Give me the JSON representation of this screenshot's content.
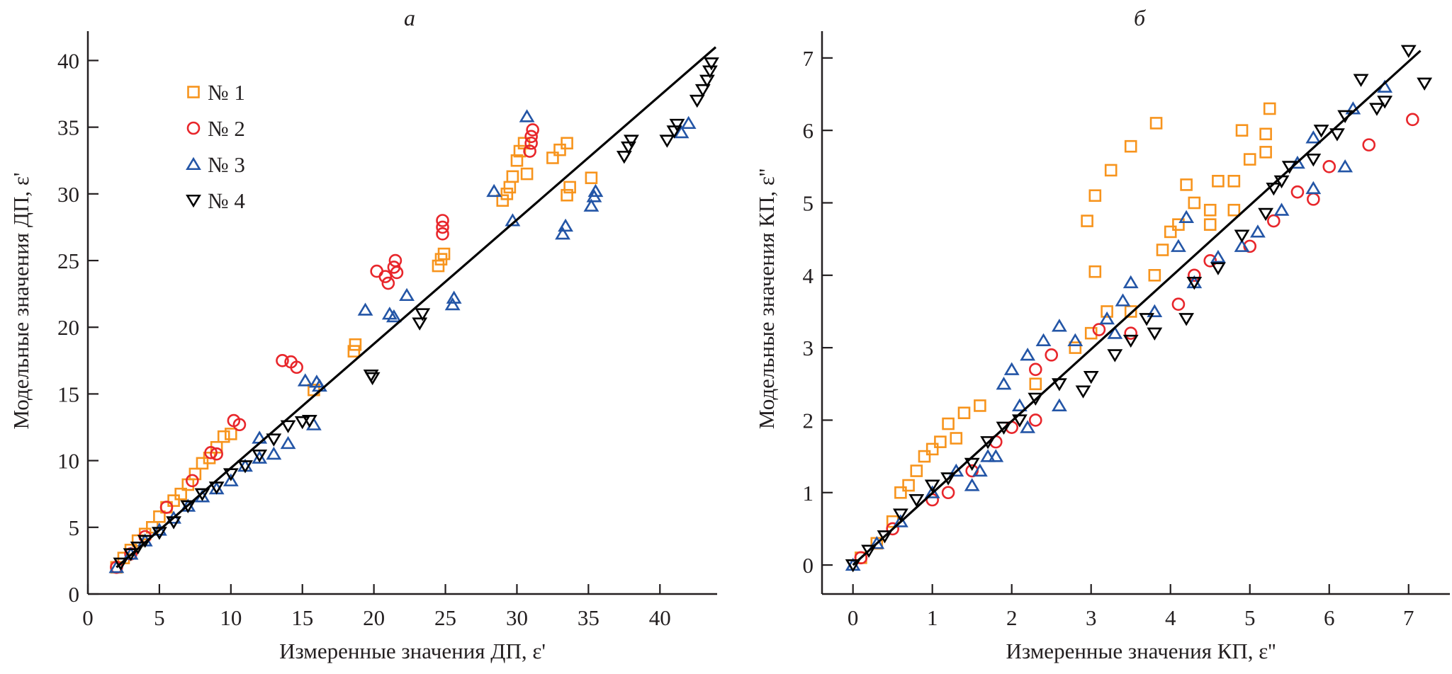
{
  "chart_data": [
    {
      "type": "scatter",
      "title": "а",
      "xlabel": "Измеренные значения ДП, ε'",
      "ylabel": "Модельные значения ДП, ε'",
      "xlim": [
        0,
        44
      ],
      "ylim": [
        0,
        42.2
      ],
      "xticks": [
        0,
        5,
        10,
        15,
        20,
        25,
        30,
        35,
        40
      ],
      "yticks": [
        0,
        5,
        10,
        15,
        20,
        25,
        30,
        35,
        40
      ],
      "grid": false,
      "legend_placement": "top-left",
      "fit_line": [
        [
          2,
          2
        ],
        [
          43.9,
          41
        ]
      ],
      "series": [
        {
          "name": "№ 1",
          "marker": "square",
          "color": "#f7941d",
          "points": [
            [
              2,
              2
            ],
            [
              2.5,
              2.7
            ],
            [
              3,
              3.3
            ],
            [
              3.5,
              4
            ],
            [
              4,
              4.5
            ],
            [
              4.5,
              5
            ],
            [
              5,
              5.8
            ],
            [
              5.5,
              6.5
            ],
            [
              6,
              7
            ],
            [
              6.5,
              7.5
            ],
            [
              7,
              8.2
            ],
            [
              7.5,
              9
            ],
            [
              8,
              9.8
            ],
            [
              8.5,
              10.2
            ],
            [
              9,
              11
            ],
            [
              9.5,
              11.8
            ],
            [
              10,
              12
            ],
            [
              15.8,
              15.3
            ],
            [
              18.6,
              18.2
            ],
            [
              18.7,
              18.7
            ],
            [
              24.5,
              24.6
            ],
            [
              24.7,
              25.1
            ],
            [
              24.9,
              25.5
            ],
            [
              29,
              29.5
            ],
            [
              29.3,
              30
            ],
            [
              29.5,
              30.5
            ],
            [
              29.7,
              31.3
            ],
            [
              30,
              32.5
            ],
            [
              30.2,
              33.2
            ],
            [
              30.5,
              33.8
            ],
            [
              30.7,
              31.5
            ],
            [
              32.5,
              32.7
            ],
            [
              33,
              33.3
            ],
            [
              33.5,
              33.8
            ],
            [
              33.5,
              29.9
            ],
            [
              33.7,
              30.5
            ],
            [
              35.2,
              31.2
            ]
          ]
        },
        {
          "name": "№ 2",
          "marker": "circle",
          "color": "#e8262b",
          "points": [
            [
              2,
              2
            ],
            [
              3,
              3
            ],
            [
              4,
              4.3
            ],
            [
              5.5,
              6.5
            ],
            [
              7.3,
              8.5
            ],
            [
              8.6,
              10.6
            ],
            [
              9,
              10.5
            ],
            [
              10.2,
              13
            ],
            [
              10.6,
              12.7
            ],
            [
              13.6,
              17.5
            ],
            [
              14.2,
              17.4
            ],
            [
              14.6,
              17
            ],
            [
              20.2,
              24.2
            ],
            [
              20.8,
              23.8
            ],
            [
              21,
              23.3
            ],
            [
              21.4,
              24.5
            ],
            [
              21.5,
              25
            ],
            [
              21.6,
              24.1
            ],
            [
              24.8,
              27
            ],
            [
              24.8,
              27.5
            ],
            [
              24.8,
              28
            ],
            [
              30.9,
              33.2
            ],
            [
              31,
              33.8
            ],
            [
              31,
              34.3
            ],
            [
              31.1,
              34.8
            ]
          ]
        },
        {
          "name": "№ 3",
          "marker": "triangle-up",
          "color": "#2355a6",
          "points": [
            [
              2,
              2
            ],
            [
              3,
              3
            ],
            [
              4,
              4
            ],
            [
              5,
              4.8
            ],
            [
              6,
              5.7
            ],
            [
              7,
              6.6
            ],
            [
              8,
              7.3
            ],
            [
              9,
              7.9
            ],
            [
              10,
              8.5
            ],
            [
              11,
              9.6
            ],
            [
              12,
              10.2
            ],
            [
              12,
              11.7
            ],
            [
              13,
              10.5
            ],
            [
              14,
              11.3
            ],
            [
              15.2,
              16
            ],
            [
              15.8,
              12.7
            ],
            [
              16,
              15.9
            ],
            [
              16.2,
              15.6
            ],
            [
              19.4,
              21.3
            ],
            [
              21.1,
              21
            ],
            [
              21.4,
              20.8
            ],
            [
              22.3,
              22.4
            ],
            [
              25.5,
              21.7
            ],
            [
              25.6,
              22.2
            ],
            [
              28.4,
              30.2
            ],
            [
              29.7,
              28
            ],
            [
              30.7,
              35.8
            ],
            [
              33.2,
              27
            ],
            [
              33.4,
              27.6
            ],
            [
              35.2,
              29.1
            ],
            [
              35.4,
              29.8
            ],
            [
              35.5,
              30.2
            ],
            [
              41.5,
              34.6
            ],
            [
              42,
              35.3
            ]
          ]
        },
        {
          "name": "№ 4",
          "marker": "triangle-down",
          "color": "#000000",
          "points": [
            [
              2.3,
              2.3
            ],
            [
              3,
              3
            ],
            [
              3.5,
              3.5
            ],
            [
              4,
              4
            ],
            [
              5,
              4.6
            ],
            [
              6,
              5.4
            ],
            [
              7,
              6.6
            ],
            [
              8,
              7.5
            ],
            [
              9,
              8
            ],
            [
              10,
              9
            ],
            [
              11,
              9.6
            ],
            [
              12,
              10.4
            ],
            [
              13,
              11.6
            ],
            [
              14,
              12.6
            ],
            [
              15,
              12.9
            ],
            [
              15.5,
              13
            ],
            [
              19.8,
              16.4
            ],
            [
              19.9,
              16.2
            ],
            [
              23.2,
              20.3
            ],
            [
              23.4,
              21
            ],
            [
              37.5,
              32.8
            ],
            [
              37.8,
              33.5
            ],
            [
              38,
              34
            ],
            [
              40.5,
              34
            ],
            [
              41,
              34.7
            ],
            [
              41.2,
              35.2
            ],
            [
              42.6,
              37
            ],
            [
              43,
              37.8
            ],
            [
              43.3,
              38.5
            ],
            [
              43.5,
              39.2
            ],
            [
              43.6,
              39.8
            ]
          ]
        }
      ]
    },
    {
      "type": "scatter",
      "title": "б",
      "xlabel": "Измеренные значения КП, ε''",
      "ylabel": "Модельные значения КП, ε''",
      "xlim": [
        -0.39,
        7.52
      ],
      "ylim": [
        -0.4,
        7.37
      ],
      "xticks": [
        0,
        1,
        2,
        3,
        4,
        5,
        6,
        7
      ],
      "yticks": [
        0,
        1,
        2,
        3,
        4,
        5,
        6,
        7
      ],
      "grid": false,
      "fit_line": [
        [
          0,
          0
        ],
        [
          7.15,
          7.1
        ]
      ],
      "series": [
        {
          "marker": "square",
          "color": "#f7941d",
          "points": [
            [
              0.1,
              0.1
            ],
            [
              0.3,
              0.3
            ],
            [
              0.5,
              0.6
            ],
            [
              0.6,
              1
            ],
            [
              0.7,
              1.1
            ],
            [
              0.8,
              1.3
            ],
            [
              0.9,
              1.5
            ],
            [
              1,
              1.6
            ],
            [
              1.1,
              1.7
            ],
            [
              1.2,
              1.95
            ],
            [
              1.3,
              1.75
            ],
            [
              1.4,
              2.1
            ],
            [
              1.6,
              2.2
            ],
            [
              2.3,
              2.5
            ],
            [
              2.8,
              3
            ],
            [
              3,
              3.2
            ],
            [
              3.05,
              4.05
            ],
            [
              2.95,
              4.75
            ],
            [
              3.05,
              5.1
            ],
            [
              3.25,
              5.45
            ],
            [
              3.5,
              5.78
            ],
            [
              3.82,
              6.1
            ],
            [
              3.2,
              3.5
            ],
            [
              3.5,
              3.5
            ],
            [
              3.8,
              4
            ],
            [
              3.9,
              4.35
            ],
            [
              4,
              4.6
            ],
            [
              4.1,
              4.7
            ],
            [
              4.2,
              5.25
            ],
            [
              4.3,
              5
            ],
            [
              4.5,
              4.9
            ],
            [
              4.6,
              5.3
            ],
            [
              4.8,
              5.3
            ],
            [
              5.2,
              5.7
            ],
            [
              5.0,
              5.6
            ],
            [
              4.9,
              6
            ],
            [
              5.25,
              6.3
            ],
            [
              5.2,
              5.95
            ],
            [
              4.8,
              4.9
            ],
            [
              4.5,
              4.7
            ]
          ]
        },
        {
          "marker": "circle",
          "color": "#e8262b",
          "points": [
            [
              0.1,
              0.1
            ],
            [
              0.5,
              0.5
            ],
            [
              1,
              0.9
            ],
            [
              1.2,
              1
            ],
            [
              1.5,
              1.3
            ],
            [
              1.8,
              1.7
            ],
            [
              2,
              1.9
            ],
            [
              2.3,
              2
            ],
            [
              2.3,
              2.7
            ],
            [
              2.5,
              2.9
            ],
            [
              3.1,
              3.25
            ],
            [
              3.5,
              3.2
            ],
            [
              4.1,
              3.6
            ],
            [
              4.3,
              4
            ],
            [
              4.5,
              4.2
            ],
            [
              5,
              4.4
            ],
            [
              5.3,
              4.75
            ],
            [
              5.6,
              5.15
            ],
            [
              5.8,
              5.05
            ],
            [
              6,
              5.5
            ],
            [
              6.5,
              5.8
            ],
            [
              7.05,
              6.15
            ]
          ]
        },
        {
          "marker": "triangle-up",
          "color": "#2355a6",
          "points": [
            [
              0,
              0
            ],
            [
              0.3,
              0.3
            ],
            [
              0.6,
              0.6
            ],
            [
              1,
              1
            ],
            [
              1.3,
              1.3
            ],
            [
              1.5,
              1.1
            ],
            [
              1.6,
              1.3
            ],
            [
              1.7,
              1.5
            ],
            [
              1.9,
              2.5
            ],
            [
              2,
              2.7
            ],
            [
              2.1,
              2.2
            ],
            [
              2.2,
              2.9
            ],
            [
              2.4,
              3.1
            ],
            [
              2.6,
              3.3
            ],
            [
              2.8,
              3.1
            ],
            [
              3.2,
              3.4
            ],
            [
              3.4,
              3.65
            ],
            [
              3.5,
              3.9
            ],
            [
              3.3,
              3.2
            ],
            [
              3.8,
              3.5
            ],
            [
              4.1,
              4.4
            ],
            [
              4.2,
              4.8
            ],
            [
              4.3,
              3.9
            ],
            [
              4.6,
              4.25
            ],
            [
              4.9,
              4.4
            ],
            [
              5.1,
              4.6
            ],
            [
              5.4,
              4.9
            ],
            [
              5.6,
              5.55
            ],
            [
              5.8,
              5.2
            ],
            [
              5.8,
              5.9
            ],
            [
              6.2,
              5.5
            ],
            [
              6.3,
              6.3
            ],
            [
              6.7,
              6.6
            ],
            [
              2.6,
              2.2
            ],
            [
              2.2,
              1.9
            ],
            [
              1.8,
              1.5
            ]
          ]
        },
        {
          "marker": "triangle-down",
          "color": "#000000",
          "points": [
            [
              0,
              0
            ],
            [
              0.2,
              0.2
            ],
            [
              0.4,
              0.4
            ],
            [
              0.6,
              0.7
            ],
            [
              0.8,
              0.9
            ],
            [
              1,
              1.1
            ],
            [
              1.2,
              1.2
            ],
            [
              1.5,
              1.4
            ],
            [
              1.7,
              1.7
            ],
            [
              1.9,
              1.9
            ],
            [
              2.1,
              2
            ],
            [
              2.3,
              2.3
            ],
            [
              2.6,
              2.5
            ],
            [
              2.9,
              2.4
            ],
            [
              3,
              2.6
            ],
            [
              3.3,
              2.9
            ],
            [
              3.5,
              3.1
            ],
            [
              3.7,
              3.4
            ],
            [
              3.8,
              3.2
            ],
            [
              4.2,
              3.4
            ],
            [
              4.3,
              3.9
            ],
            [
              4.6,
              4.1
            ],
            [
              4.9,
              4.55
            ],
            [
              5.2,
              4.85
            ],
            [
              5.3,
              5.2
            ],
            [
              5.5,
              5.5
            ],
            [
              5.4,
              5.3
            ],
            [
              5.8,
              5.6
            ],
            [
              5.9,
              6
            ],
            [
              6.1,
              5.95
            ],
            [
              6.2,
              6.2
            ],
            [
              6.4,
              6.7
            ],
            [
              6.6,
              6.3
            ],
            [
              7,
              7.1
            ],
            [
              7.2,
              6.65
            ],
            [
              6.7,
              6.4
            ]
          ]
        }
      ]
    }
  ]
}
